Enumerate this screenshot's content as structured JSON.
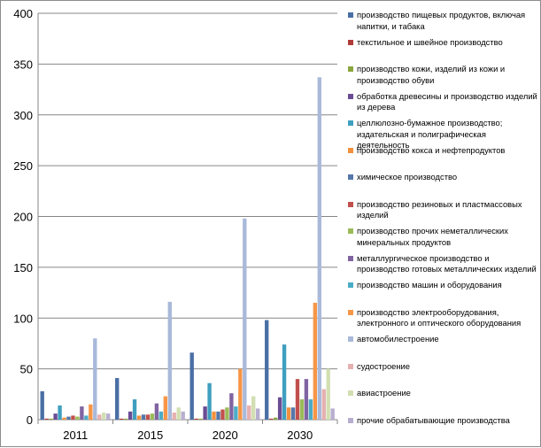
{
  "chart_data": {
    "type": "bar",
    "title": "",
    "xlabel": "",
    "ylabel": "",
    "ylim": [
      0,
      400
    ],
    "yticks": [
      "0",
      "50",
      "100",
      "150",
      "200",
      "250",
      "300",
      "350",
      "400"
    ],
    "grid": true,
    "legend_position": "right",
    "categories": [
      "2011",
      "2015",
      "2020",
      "2030"
    ],
    "series": [
      {
        "name": "производство пищевых продуктов, включая напитки, и табака",
        "color": "#4a6fa5",
        "values": [
          28,
          41,
          66,
          98
        ]
      },
      {
        "name": "текстильное и швейное производство",
        "color": "#b03a37",
        "values": [
          1,
          1,
          1,
          1
        ]
      },
      {
        "name": "производство кожи, изделий из кожи и производство обуви",
        "color": "#8aa63e",
        "values": [
          1,
          1,
          1,
          2
        ]
      },
      {
        "name": "обработка древесины и производство изделий из дерева",
        "color": "#6a4c93",
        "values": [
          6,
          8,
          13,
          22
        ]
      },
      {
        "name": "целлюлозно-бумажное производство; издательская и полиграфическая деятельность",
        "color": "#3f9fbf",
        "values": [
          14,
          20,
          36,
          74
        ]
      },
      {
        "name": "производство кокса и нефтепродуктов",
        "color": "#f2913d",
        "values": [
          2,
          4,
          8,
          12
        ]
      },
      {
        "name": "химическое производство",
        "color": "#5577aa",
        "values": [
          3,
          5,
          8,
          12
        ]
      },
      {
        "name": "производство резиновых и пластмассовых изделий",
        "color": "#c0504d",
        "values": [
          4,
          5,
          10,
          40
        ]
      },
      {
        "name": "производство прочих неметаллических минеральных продуктов",
        "color": "#9bbb59",
        "values": [
          3,
          6,
          12,
          20
        ]
      },
      {
        "name": "металлургическое производство и производство готовых металлических изделий",
        "color": "#8064a2",
        "values": [
          13,
          16,
          26,
          40
        ]
      },
      {
        "name": "производство машин и оборудования",
        "color": "#4bacc6",
        "values": [
          4,
          8,
          13,
          20
        ]
      },
      {
        "name": "производство электрооборудования, электронного и оптического оборудования",
        "color": "#f79646",
        "values": [
          15,
          23,
          50,
          115
        ]
      },
      {
        "name": "автомобилестроение",
        "color": "#a9b9da",
        "values": [
          80,
          116,
          198,
          337
        ]
      },
      {
        "name": "судостроение",
        "color": "#e6b0b0",
        "values": [
          5,
          7,
          14,
          30
        ]
      },
      {
        "name": "авиастроение",
        "color": "#d2dfb2",
        "values": [
          7,
          12,
          23,
          50
        ]
      },
      {
        "name": "прочие обрабатывающие производства",
        "color": "#b7aed0",
        "values": [
          6,
          8,
          11,
          11
        ]
      }
    ]
  }
}
